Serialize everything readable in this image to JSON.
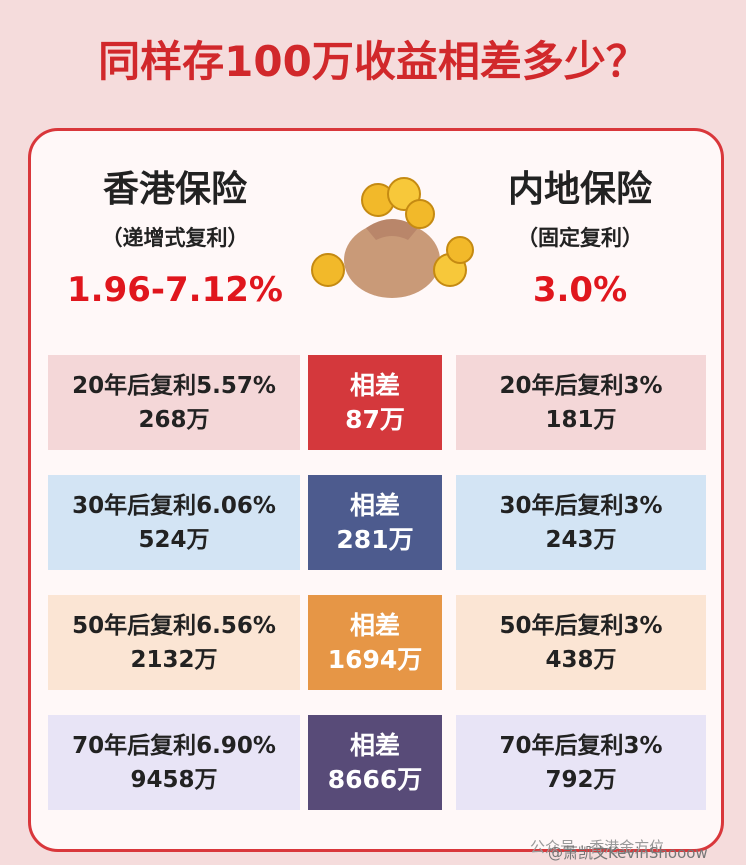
{
  "title": "同样存100万收益相差多少？",
  "left": {
    "heading": "香港保险",
    "subheading": "（递增式复利）",
    "rate": "1.96-7.12%"
  },
  "right": {
    "heading": "内地保险",
    "subheading": "（固定复利）",
    "rate": "3.0%"
  },
  "rows": [
    {
      "left_rate": "20年后复利5.57%",
      "left_amount": "268万",
      "diff_label": "相差",
      "diff": "87万",
      "right_rate": "20年后复利3%",
      "right_amount": "181万"
    },
    {
      "left_rate": "30年后复利6.06%",
      "left_amount": "524万",
      "diff_label": "相差",
      "diff": "281万",
      "right_rate": "30年后复利3%",
      "right_amount": "243万"
    },
    {
      "left_rate": "50年后复利6.56%",
      "left_amount": "2132万",
      "diff_label": "相差",
      "diff": "1694万",
      "right_rate": "50年后复利3%",
      "right_amount": "438万"
    },
    {
      "left_rate": "70年后复利6.90%",
      "left_amount": "9458万",
      "diff_label": "相差",
      "diff": "8666万",
      "right_rate": "70年后复利3%",
      "right_amount": "792万"
    }
  ],
  "watermark": "公众号 · 香港金方位",
  "credit": "@萧凯文KevinShooow"
}
